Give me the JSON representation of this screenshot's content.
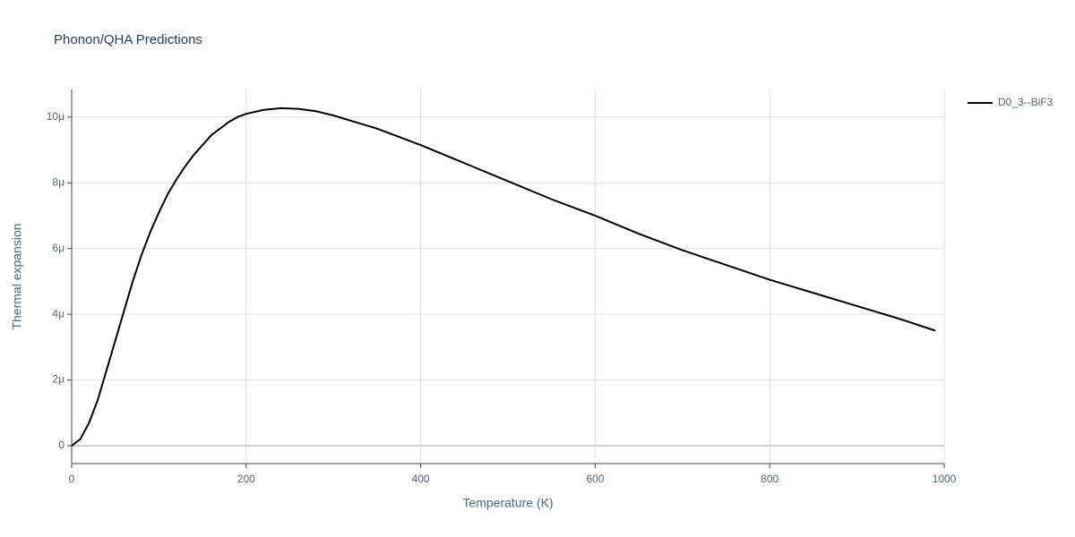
{
  "chart_data": {
    "type": "line",
    "title": "Phonon/QHA Predictions",
    "xlabel": "Temperature (K)",
    "ylabel": "Thermal expansion",
    "x": [
      0,
      10,
      20,
      30,
      40,
      50,
      60,
      70,
      80,
      90,
      100,
      110,
      120,
      130,
      140,
      150,
      160,
      170,
      180,
      190,
      200,
      220,
      240,
      260,
      280,
      300,
      350,
      400,
      450,
      500,
      550,
      600,
      650,
      700,
      750,
      800,
      850,
      900,
      950,
      990
    ],
    "series": [
      {
        "name": "D0_3--BiF3",
        "color": "#000000",
        "values": [
          0,
          2e-07,
          7e-07,
          1.4e-06,
          2.3e-06,
          3.2e-06,
          4.1e-06,
          5e-06,
          5.8e-06,
          6.5e-06,
          7.1e-06,
          7.65e-06,
          8.1e-06,
          8.5e-06,
          8.85e-06,
          9.15e-06,
          9.45e-06,
          9.65e-06,
          9.85e-06,
          1e-05,
          1.01e-05,
          1.022e-05,
          1.027e-05,
          1.025e-05,
          1.018e-05,
          1.005e-05,
          9.65e-06,
          9.15e-06,
          8.6e-06,
          8.05e-06,
          7.5e-06,
          7e-06,
          6.45e-06,
          5.95e-06,
          5.5e-06,
          5.05e-06,
          4.65e-06,
          4.25e-06,
          3.85e-06,
          3.5e-06
        ]
      }
    ],
    "xlim": [
      0,
      1000
    ],
    "xticks": [
      0,
      200,
      400,
      600,
      800,
      1000
    ],
    "ylim": [
      -5.45e-07,
      1.084e-05
    ],
    "yticks": [
      0,
      {
        "value": 2e-06,
        "label": "2μ"
      },
      {
        "value": 4e-06,
        "label": "4μ"
      },
      {
        "value": 6e-06,
        "label": "6μ"
      },
      {
        "value": 8e-06,
        "label": "8μ"
      },
      {
        "value": 1e-05,
        "label": "10μ"
      }
    ],
    "grid": true,
    "legend": "top-right"
  }
}
